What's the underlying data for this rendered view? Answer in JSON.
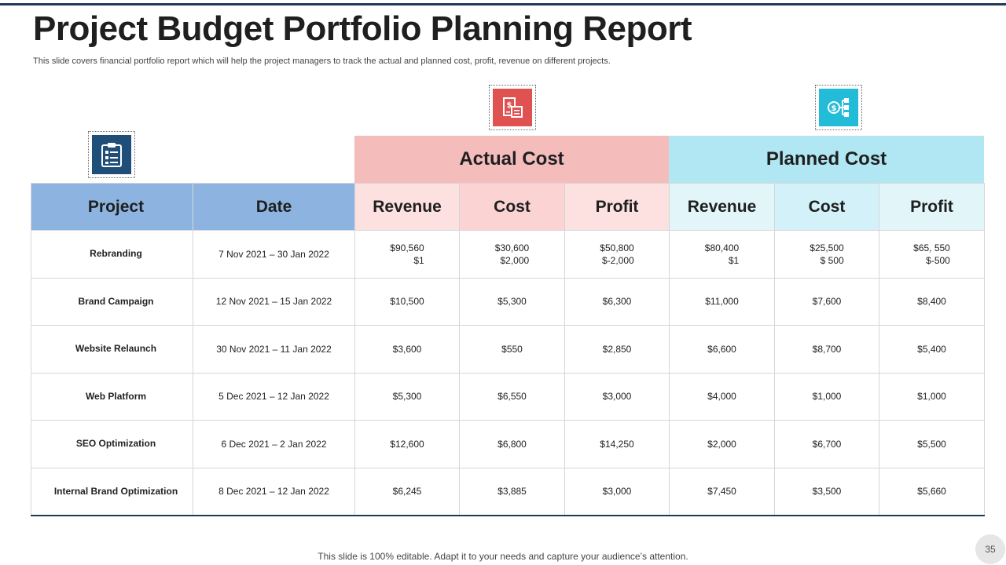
{
  "slide": {
    "title": "Project Budget Portfolio Planning Report",
    "subtitle": "This slide covers financial portfolio report which will help the project managers to track the actual and planned cost, profit, revenue on different projects.",
    "footer": "This slide is 100% editable. Adapt it to your needs and capture your audience’s attention.",
    "page_number": "35"
  },
  "icons": {
    "project": "clipboard-checklist-icon",
    "actual": "money-document-icon",
    "planned": "money-hierarchy-icon"
  },
  "colors": {
    "header_blue": "#8db4e0",
    "actual_pink": "#f5bcbc",
    "planned_cyan": "#b0e7f2",
    "navy": "#1f4e79",
    "red_icon": "#e05252",
    "cyan_icon": "#23bcd8"
  },
  "table": {
    "groups": {
      "actual": "Actual Cost",
      "planned": "Planned Cost"
    },
    "headers": {
      "project": "Project",
      "date": "Date",
      "actual_revenue": "Revenue",
      "actual_cost": "Cost",
      "actual_profit": "Profit",
      "planned_revenue": "Revenue",
      "planned_cost": "Cost",
      "planned_profit": "Profit"
    },
    "rows": [
      {
        "project": "Rebranding",
        "date": "7 Nov 2021 – 30 Jan 2022",
        "actual_revenue": [
          "$90,560",
          "$1"
        ],
        "actual_cost": [
          "$30,600",
          "$2,000"
        ],
        "actual_profit": [
          "$50,800",
          "$-2,000"
        ],
        "planned_revenue": [
          "$80,400",
          "$1"
        ],
        "planned_cost": [
          "$25,500",
          "$ 500"
        ],
        "planned_profit": [
          "$65, 550",
          "$-500"
        ]
      },
      {
        "project": "Brand Campaign",
        "date": "12 Nov 2021 – 15 Jan 2022",
        "actual_revenue": "$10,500",
        "actual_cost": "$5,300",
        "actual_profit": "$6,300",
        "planned_revenue": "$11,000",
        "planned_cost": "$7,600",
        "planned_profit": "$8,400"
      },
      {
        "project": "Website Relaunch",
        "date": "30 Nov 2021 – 11 Jan 2022",
        "actual_revenue": "$3,600",
        "actual_cost": "$550",
        "actual_profit": "$2,850",
        "planned_revenue": "$6,600",
        "planned_cost": "$8,700",
        "planned_profit": "$5,400"
      },
      {
        "project": "Web Platform",
        "date": "5 Dec 2021 – 12 Jan 2022",
        "actual_revenue": "$5,300",
        "actual_cost": "$6,550",
        "actual_profit": "$3,000",
        "planned_revenue": "$4,000",
        "planned_cost": "$1,000",
        "planned_profit": "$1,000"
      },
      {
        "project": "SEO Optimization",
        "date": "6 Dec 2021 – 2 Jan 2022",
        "actual_revenue": "$12,600",
        "actual_cost": "$6,800",
        "actual_profit": "$14,250",
        "planned_revenue": "$2,000",
        "planned_cost": "$6,700",
        "planned_profit": "$5,500"
      },
      {
        "project": "Internal Brand Optimization",
        "date": "8 Dec 2021 – 12 Jan 2022",
        "actual_revenue": "$6,245",
        "actual_cost": "$3,885",
        "actual_profit": "$3,000",
        "planned_revenue": "$7,450",
        "planned_cost": "$3,500",
        "planned_profit": "$5,660"
      }
    ]
  }
}
